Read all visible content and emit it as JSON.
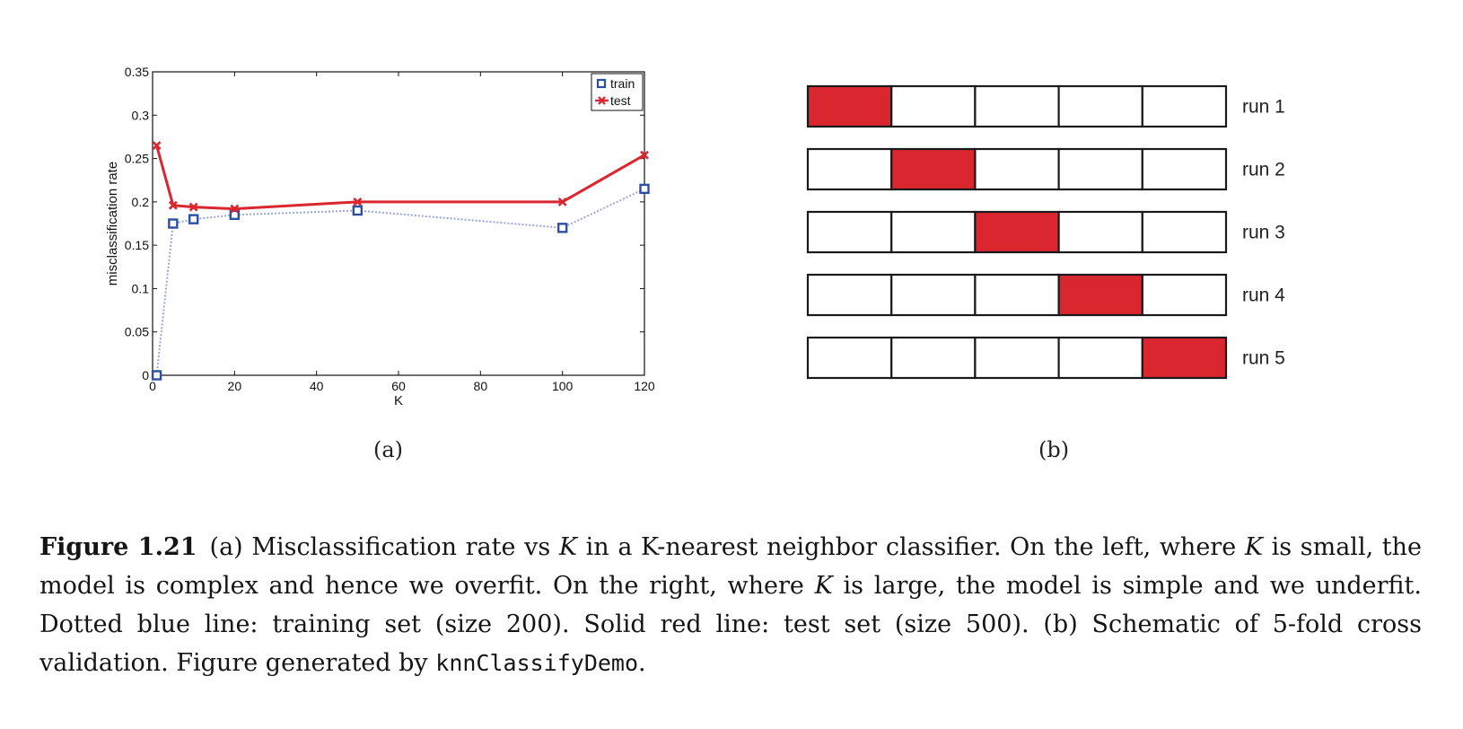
{
  "chart_data": {
    "type": "line",
    "title": "",
    "xlabel": "K",
    "ylabel": "misclassification rate",
    "xlim": [
      0,
      120
    ],
    "ylim": [
      0,
      0.35
    ],
    "xticks": [
      "0",
      "20",
      "40",
      "60",
      "80",
      "100",
      "120"
    ],
    "yticks": [
      "0",
      "0.05",
      "0.1",
      "0.15",
      "0.2",
      "0.25",
      "0.3",
      "0.35"
    ],
    "legend_position": "top-right",
    "grid": false,
    "series": [
      {
        "name": "train",
        "style": "dotted",
        "marker": "square",
        "color": "#2b4fa3",
        "x": [
          1,
          5,
          10,
          20,
          50,
          100,
          120
        ],
        "y": [
          0.0,
          0.175,
          0.18,
          0.185,
          0.19,
          0.17,
          0.215
        ]
      },
      {
        "name": "test",
        "style": "solid",
        "marker": "x",
        "color": "#d9262f",
        "x": [
          1,
          5,
          10,
          20,
          50,
          100,
          120
        ],
        "y": [
          0.265,
          0.196,
          0.194,
          0.192,
          0.2,
          0.2,
          0.254
        ]
      }
    ]
  },
  "panel_b": {
    "rows": [
      {
        "label": "run 1",
        "highlight": 0
      },
      {
        "label": "run 2",
        "highlight": 1
      },
      {
        "label": "run 3",
        "highlight": 2
      },
      {
        "label": "run 4",
        "highlight": 3
      },
      {
        "label": "run 5",
        "highlight": 4
      }
    ],
    "folds": 5,
    "highlight_color": "#d9262f"
  },
  "subfigure_labels": {
    "a": "(a)",
    "b": "(b)"
  },
  "caption": {
    "lead": "Figure 1.21",
    "p1": "(a) Misclassification rate vs ",
    "k1": "K",
    "p2": " in a K-nearest neighbor classifier.  On the left, where ",
    "k2": "K",
    "p3": " is small, the model is complex and hence we overfit.  On the right, where ",
    "k3": "K",
    "p4": " is large, the model is simple and we underfit. Dotted blue line: training set (size 200).  Solid red line: test set (size 500).  (b) Schematic of 5-fold cross validation. Figure generated by ",
    "code": "knnClassifyDemo",
    "p5": "."
  }
}
